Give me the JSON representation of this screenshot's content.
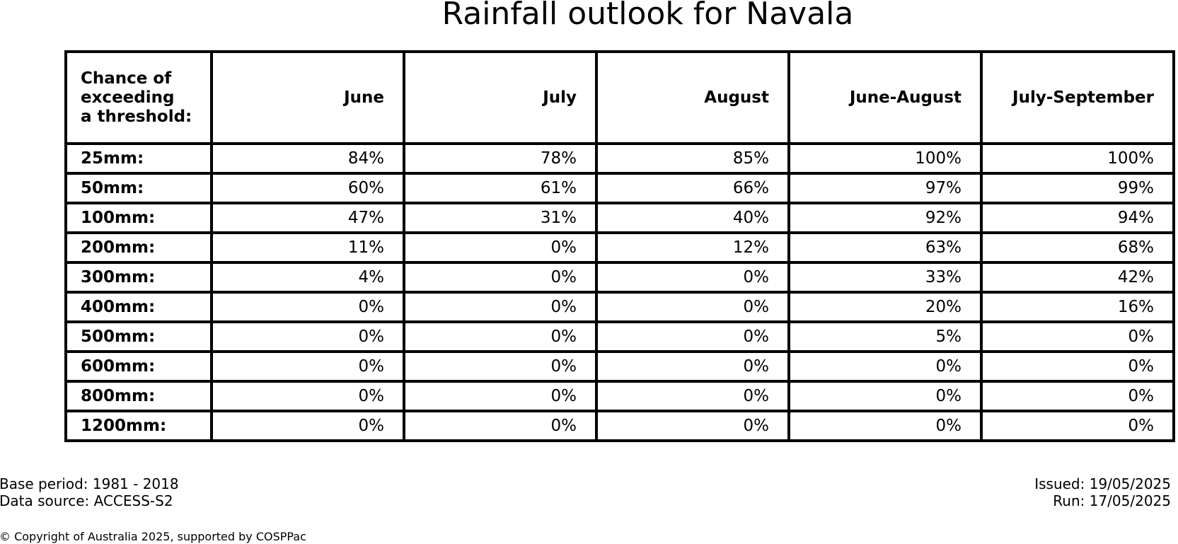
{
  "title": "Rainfall outlook for Navala",
  "chart_data": {
    "type": "table",
    "title": "Rainfall outlook for Navala",
    "corner_header": [
      "Chance of",
      "exceeding",
      "a threshold:"
    ],
    "columns": [
      "June",
      "July",
      "August",
      "June-August",
      "July-September"
    ],
    "rows": [
      {
        "label": "25mm:",
        "values": [
          "84%",
          "78%",
          "85%",
          "100%",
          "100%"
        ]
      },
      {
        "label": "50mm:",
        "values": [
          "60%",
          "61%",
          "66%",
          "97%",
          "99%"
        ]
      },
      {
        "label": "100mm:",
        "values": [
          "47%",
          "31%",
          "40%",
          "92%",
          "94%"
        ]
      },
      {
        "label": "200mm:",
        "values": [
          "11%",
          "0%",
          "12%",
          "63%",
          "68%"
        ]
      },
      {
        "label": "300mm:",
        "values": [
          "4%",
          "0%",
          "0%",
          "33%",
          "42%"
        ]
      },
      {
        "label": "400mm:",
        "values": [
          "0%",
          "0%",
          "0%",
          "20%",
          "16%"
        ]
      },
      {
        "label": "500mm:",
        "values": [
          "0%",
          "0%",
          "0%",
          "5%",
          "0%"
        ]
      },
      {
        "label": "600mm:",
        "values": [
          "0%",
          "0%",
          "0%",
          "0%",
          "0%"
        ]
      },
      {
        "label": "800mm:",
        "values": [
          "0%",
          "0%",
          "0%",
          "0%",
          "0%"
        ]
      },
      {
        "label": "1200mm:",
        "values": [
          "0%",
          "0%",
          "0%",
          "0%",
          "0%"
        ]
      }
    ]
  },
  "footer": {
    "base_period": "Base period: 1981 - 2018",
    "data_source": "Data source: ACCESS-S2",
    "issued": "Issued: 19/05/2025",
    "run": "Run: 17/05/2025",
    "copyright": "© Copyright of Australia 2025, supported by COSPPac"
  }
}
